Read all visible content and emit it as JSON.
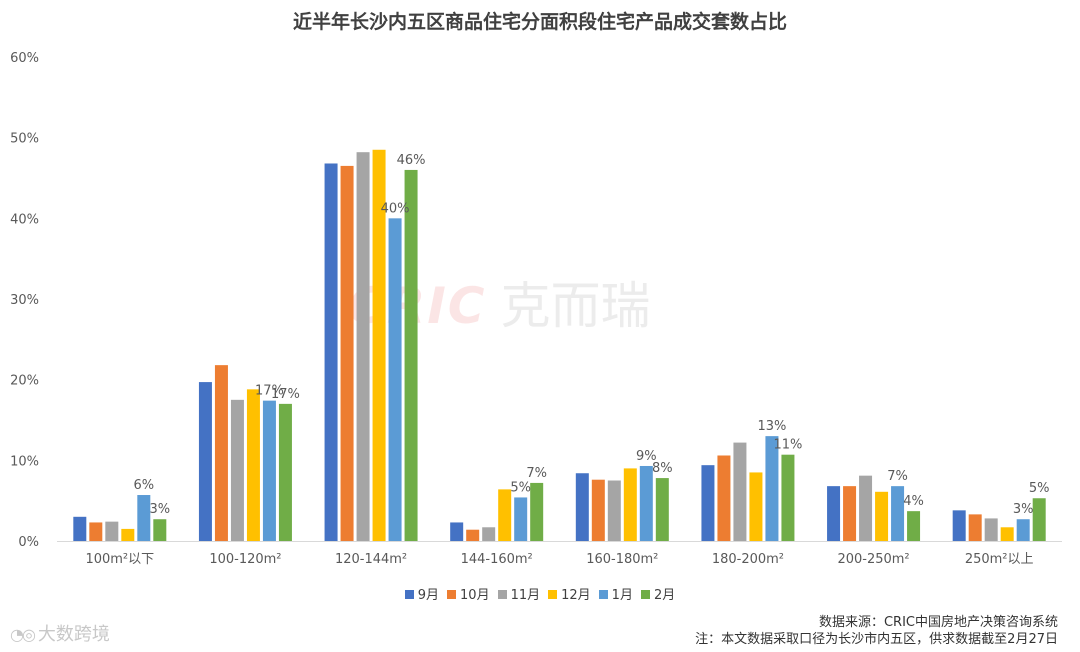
{
  "chart_data": {
    "type": "bar",
    "title": "近半年长沙内五区商品住宅分面积段住宅产品成交套数占比",
    "categories": [
      "100m²以下",
      "100-120m²",
      "120-144m²",
      "144-160m²",
      "160-180m²",
      "180-200m²",
      "200-250m²",
      "250m²以上"
    ],
    "series": [
      {
        "name": "9月",
        "color": "#4472C4",
        "values": [
          3.0,
          19.7,
          46.8,
          2.3,
          8.4,
          9.4,
          6.8,
          3.8
        ]
      },
      {
        "name": "10月",
        "color": "#ED7D31",
        "values": [
          2.3,
          21.8,
          46.5,
          1.4,
          7.6,
          10.6,
          6.8,
          3.3
        ]
      },
      {
        "name": "11月",
        "color": "#A5A5A5",
        "values": [
          2.4,
          17.5,
          48.2,
          1.7,
          7.5,
          12.2,
          8.1,
          2.8
        ]
      },
      {
        "name": "12月",
        "color": "#FFC000",
        "values": [
          1.5,
          18.8,
          48.5,
          6.4,
          9.0,
          8.5,
          6.1,
          1.7
        ]
      },
      {
        "name": "1月",
        "color": "#5B9BD5",
        "values": [
          5.7,
          17.4,
          40.0,
          5.4,
          9.3,
          13.0,
          6.8,
          2.7
        ]
      },
      {
        "name": "2月",
        "color": "#70AD47",
        "values": [
          2.7,
          17.0,
          46.0,
          7.2,
          7.8,
          10.7,
          3.7,
          5.3
        ]
      }
    ],
    "data_labels": [
      {
        "category": 0,
        "series": 4,
        "text": "6%"
      },
      {
        "category": 0,
        "series": 5,
        "text": "3%"
      },
      {
        "category": 1,
        "series": 4,
        "text": "17%"
      },
      {
        "category": 1,
        "series": 5,
        "text": "17%"
      },
      {
        "category": 2,
        "series": 4,
        "text": "40%"
      },
      {
        "category": 2,
        "series": 5,
        "text": "46%"
      },
      {
        "category": 3,
        "series": 4,
        "text": "5%"
      },
      {
        "category": 3,
        "series": 5,
        "text": "7%"
      },
      {
        "category": 4,
        "series": 4,
        "text": "9%"
      },
      {
        "category": 4,
        "series": 5,
        "text": "8%"
      },
      {
        "category": 5,
        "series": 4,
        "text": "13%"
      },
      {
        "category": 5,
        "series": 5,
        "text": "11%"
      },
      {
        "category": 6,
        "series": 4,
        "text": "7%"
      },
      {
        "category": 6,
        "series": 5,
        "text": "4%"
      },
      {
        "category": 7,
        "series": 4,
        "text": "3%"
      },
      {
        "category": 7,
        "series": 5,
        "text": "5%"
      }
    ],
    "yticks": [
      "0%",
      "10%",
      "20%",
      "30%",
      "40%",
      "50%",
      "60%"
    ],
    "ylim": [
      0,
      60
    ],
    "grid": false,
    "legend_position": "bottom"
  },
  "watermark": {
    "brand": "CRIC",
    "text": "克而瑞"
  },
  "source": "数据来源：CRIC中国房地产决策咨询系统",
  "note": "注：本文数据采取口径为长沙市内五区，供求数据截至2月27日",
  "footer_logo": {
    "icon": "weibo-eye-icon",
    "text": "大数跨境"
  }
}
